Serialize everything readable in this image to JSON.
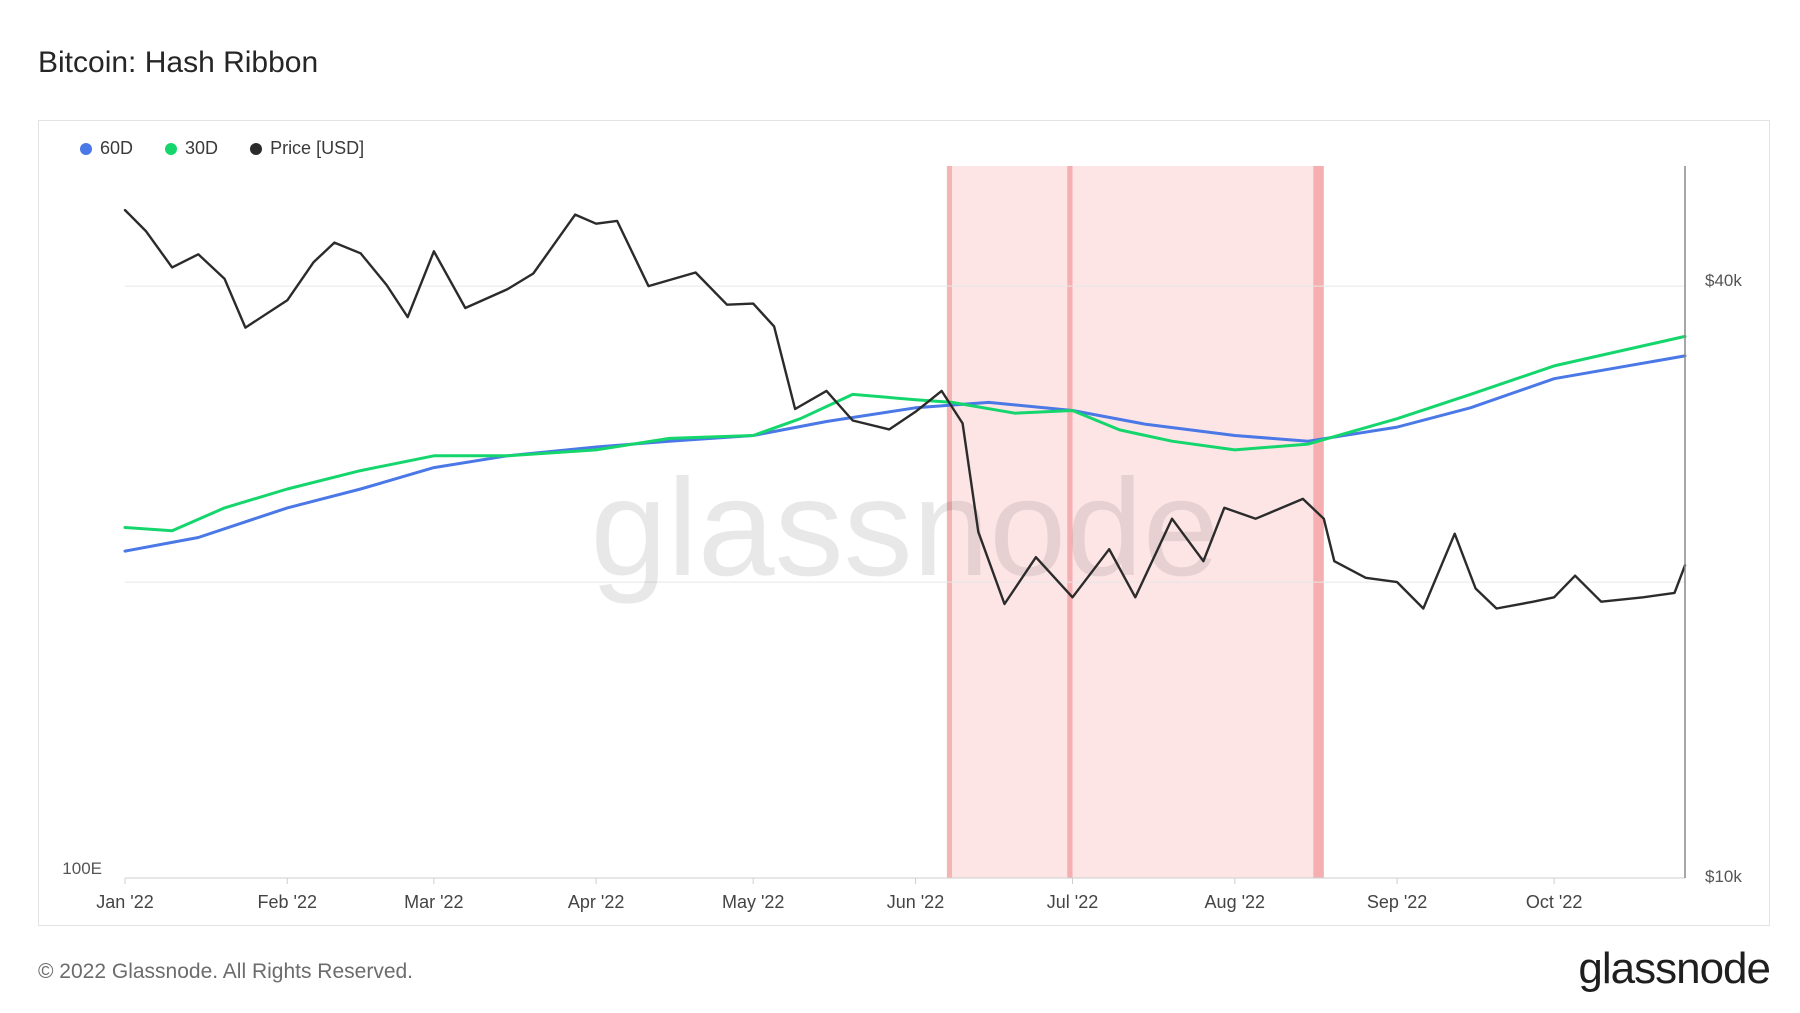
{
  "title": "Bitcoin: Hash Ribbon",
  "footer": {
    "copyright": "© 2022 Glassnode. All Rights Reserved.",
    "logo": "glassnode"
  },
  "watermark": "glassnode",
  "chart_data": {
    "type": "line",
    "title": "Bitcoin: Hash Ribbon",
    "legend_position": "top-left",
    "grid": true,
    "x_ticks": [
      "Jan '22",
      "Feb '22",
      "Mar '22",
      "Apr '22",
      "May '22",
      "Jun '22",
      "Jul '22",
      "Aug '22",
      "Sep '22",
      "Oct '22"
    ],
    "x_range": [
      "2022-01-01",
      "2022-10-26"
    ],
    "left_axis": {
      "scale": "log",
      "tick_labels": [
        "100E"
      ],
      "range": [
        100,
        330
      ]
    },
    "right_axis": {
      "scale": "log",
      "tick_labels": [
        "$40k",
        "$10k"
      ],
      "range": [
        10000,
        53000
      ]
    },
    "capitulation_zones": [
      {
        "start": "2022-06-07",
        "end": "2022-06-08"
      },
      {
        "start": "2022-06-08",
        "end": "2022-08-18"
      },
      {
        "start": "2022-06-30",
        "end": "2022-07-01"
      },
      {
        "start": "2022-08-16",
        "end": "2022-08-18"
      }
    ],
    "series": [
      {
        "name": "60D",
        "color": "#4a78e6",
        "axis": "left",
        "points": [
          [
            "2022-01-01",
            173
          ],
          [
            "2022-01-15",
            177
          ],
          [
            "2022-02-01",
            186
          ],
          [
            "2022-02-15",
            192
          ],
          [
            "2022-03-01",
            199
          ],
          [
            "2022-03-15",
            203
          ],
          [
            "2022-04-01",
            206
          ],
          [
            "2022-04-15",
            208
          ],
          [
            "2022-05-01",
            210
          ],
          [
            "2022-05-15",
            215
          ],
          [
            "2022-06-01",
            220
          ],
          [
            "2022-06-15",
            222
          ],
          [
            "2022-07-01",
            219
          ],
          [
            "2022-07-15",
            214
          ],
          [
            "2022-08-01",
            210
          ],
          [
            "2022-08-15",
            208
          ],
          [
            "2022-09-01",
            213
          ],
          [
            "2022-09-15",
            220
          ],
          [
            "2022-10-01",
            231
          ],
          [
            "2022-10-26",
            240
          ]
        ]
      },
      {
        "name": "30D",
        "color": "#15d66c",
        "axis": "left",
        "points": [
          [
            "2022-01-01",
            180
          ],
          [
            "2022-01-10",
            179
          ],
          [
            "2022-01-20",
            186
          ],
          [
            "2022-02-01",
            192
          ],
          [
            "2022-02-15",
            198
          ],
          [
            "2022-03-01",
            203
          ],
          [
            "2022-03-15",
            203
          ],
          [
            "2022-04-01",
            205
          ],
          [
            "2022-04-15",
            209
          ],
          [
            "2022-05-01",
            210
          ],
          [
            "2022-05-10",
            216
          ],
          [
            "2022-05-20",
            225
          ],
          [
            "2022-06-01",
            223
          ],
          [
            "2022-06-08",
            222
          ],
          [
            "2022-06-20",
            218
          ],
          [
            "2022-07-01",
            219
          ],
          [
            "2022-07-10",
            212
          ],
          [
            "2022-07-20",
            208
          ],
          [
            "2022-08-01",
            205
          ],
          [
            "2022-08-15",
            207
          ],
          [
            "2022-09-01",
            216
          ],
          [
            "2022-09-15",
            225
          ],
          [
            "2022-10-01",
            236
          ],
          [
            "2022-10-26",
            248
          ]
        ]
      },
      {
        "name": "Price [USD]",
        "color": "#2b2b2b",
        "axis": "right",
        "points": [
          [
            "2022-01-01",
            47800
          ],
          [
            "2022-01-05",
            45500
          ],
          [
            "2022-01-10",
            41800
          ],
          [
            "2022-01-15",
            43100
          ],
          [
            "2022-01-20",
            40700
          ],
          [
            "2022-01-24",
            36300
          ],
          [
            "2022-02-01",
            38700
          ],
          [
            "2022-02-06",
            42300
          ],
          [
            "2022-02-10",
            44300
          ],
          [
            "2022-02-15",
            43200
          ],
          [
            "2022-02-20",
            40100
          ],
          [
            "2022-02-24",
            37200
          ],
          [
            "2022-03-01",
            43400
          ],
          [
            "2022-03-07",
            38000
          ],
          [
            "2022-03-15",
            39700
          ],
          [
            "2022-03-20",
            41200
          ],
          [
            "2022-03-28",
            47300
          ],
          [
            "2022-04-01",
            46300
          ],
          [
            "2022-04-05",
            46600
          ],
          [
            "2022-04-11",
            40000
          ],
          [
            "2022-04-20",
            41300
          ],
          [
            "2022-04-26",
            38300
          ],
          [
            "2022-05-01",
            38400
          ],
          [
            "2022-05-05",
            36400
          ],
          [
            "2022-05-09",
            30000
          ],
          [
            "2022-05-15",
            31300
          ],
          [
            "2022-05-20",
            29200
          ],
          [
            "2022-05-27",
            28600
          ],
          [
            "2022-06-01",
            29800
          ],
          [
            "2022-06-06",
            31300
          ],
          [
            "2022-06-10",
            29000
          ],
          [
            "2022-06-13",
            22500
          ],
          [
            "2022-06-18",
            19000
          ],
          [
            "2022-06-24",
            21200
          ],
          [
            "2022-07-01",
            19300
          ],
          [
            "2022-07-08",
            21600
          ],
          [
            "2022-07-13",
            19300
          ],
          [
            "2022-07-20",
            23200
          ],
          [
            "2022-07-26",
            21000
          ],
          [
            "2022-07-30",
            23800
          ],
          [
            "2022-08-05",
            23200
          ],
          [
            "2022-08-14",
            24300
          ],
          [
            "2022-08-18",
            23200
          ],
          [
            "2022-08-20",
            21000
          ],
          [
            "2022-08-26",
            20200
          ],
          [
            "2022-09-01",
            20000
          ],
          [
            "2022-09-06",
            18800
          ],
          [
            "2022-09-12",
            22400
          ],
          [
            "2022-09-16",
            19700
          ],
          [
            "2022-09-20",
            18800
          ],
          [
            "2022-09-27",
            19100
          ],
          [
            "2022-10-01",
            19300
          ],
          [
            "2022-10-05",
            20300
          ],
          [
            "2022-10-10",
            19100
          ],
          [
            "2022-10-18",
            19300
          ],
          [
            "2022-10-24",
            19500
          ],
          [
            "2022-10-26",
            20800
          ]
        ]
      }
    ]
  }
}
